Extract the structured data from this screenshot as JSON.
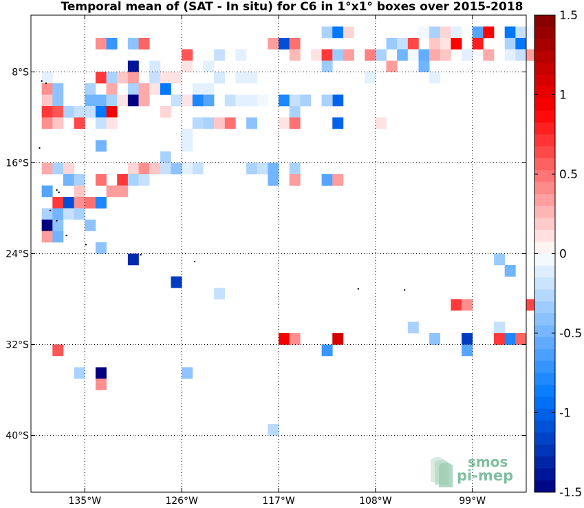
{
  "chart_data": {
    "type": "heatmap",
    "title": "Temporal mean of (SAT - In situ) for C6 in 1°x1° boxes over 2015-2018",
    "lon_range": [
      -140,
      -94
    ],
    "lat_range": [
      -45,
      -3
    ],
    "x_ticks": [
      {
        "value": -135,
        "label": "135°W"
      },
      {
        "value": -126,
        "label": "126°W"
      },
      {
        "value": -117,
        "label": "117°W"
      },
      {
        "value": -108,
        "label": "108°W"
      },
      {
        "value": -99,
        "label": "99°W"
      }
    ],
    "y_ticks": [
      {
        "value": -8,
        "label": "8°S"
      },
      {
        "value": -16,
        "label": "16°S"
      },
      {
        "value": -24,
        "label": "24°S"
      },
      {
        "value": -32,
        "label": "32°S"
      },
      {
        "value": -40,
        "label": "40°S"
      }
    ],
    "grid": true,
    "colorbar": {
      "min": -1.5,
      "max": 1.5,
      "steps": 40,
      "ticks": [
        {
          "value": 1.5,
          "label": "1.5"
        },
        {
          "value": 1,
          "label": "1"
        },
        {
          "value": 0.5,
          "label": "0.5"
        },
        {
          "value": 0,
          "label": "0"
        },
        {
          "value": -0.5,
          "label": "-0.5"
        },
        {
          "value": -1,
          "label": "-1"
        },
        {
          "value": -1.5,
          "label": "-1.5"
        }
      ]
    },
    "cells": [
      [
        -113,
        -5,
        -0.3
      ],
      [
        -112,
        -5,
        -0.9
      ],
      [
        -111,
        -5,
        0.15
      ],
      [
        -104,
        -5,
        -0.05
      ],
      [
        -103,
        -5,
        -0.3
      ],
      [
        -102,
        -5,
        0.15
      ],
      [
        -101,
        -5,
        -0.1
      ],
      [
        -99,
        -5,
        -0.6
      ],
      [
        -98,
        -5,
        0.9
      ],
      [
        -96,
        -5,
        -0.9
      ],
      [
        -95,
        -5,
        -0.2
      ],
      [
        -94,
        -5,
        -0.05
      ],
      [
        -134,
        -6,
        0.4
      ],
      [
        -133,
        -6,
        -0.7
      ],
      [
        -131,
        -6,
        -0.4
      ],
      [
        -130,
        -6,
        0.55
      ],
      [
        -118,
        -6,
        0.35
      ],
      [
        -117,
        -6,
        -1.1
      ],
      [
        -116,
        -6,
        0.5
      ],
      [
        -107,
        -6,
        -0.35
      ],
      [
        -106,
        -6,
        -0.2
      ],
      [
        -105,
        -6,
        0.65
      ],
      [
        -103,
        -6,
        0.2
      ],
      [
        -102,
        -6,
        0.1
      ],
      [
        -101,
        -6,
        0.9
      ],
      [
        -99,
        -6,
        0.8
      ],
      [
        -96,
        -6,
        -0.3
      ],
      [
        -95,
        -6,
        -0.9
      ],
      [
        -126,
        -7,
        0.6
      ],
      [
        -123,
        -7,
        -0.2
      ],
      [
        -121,
        -7,
        -0.1
      ],
      [
        -116,
        -7,
        0.25
      ],
      [
        -114,
        -7,
        0.1
      ],
      [
        -113,
        -7,
        0.7
      ],
      [
        -112,
        -7,
        -0.35
      ],
      [
        -111,
        -7,
        0.35
      ],
      [
        -109,
        -7,
        0.45
      ],
      [
        -108,
        -7,
        -0.3
      ],
      [
        -106,
        -7,
        -0.5
      ],
      [
        -105,
        -7,
        -0.05
      ],
      [
        -104,
        -7,
        -0.55
      ],
      [
        -103,
        -7,
        0.3
      ],
      [
        -102,
        -7,
        0.2
      ],
      [
        -100,
        -7,
        -0.1
      ],
      [
        -98,
        -7,
        0.3
      ],
      [
        -96,
        -7,
        -0.1
      ],
      [
        -95,
        -7,
        -0.2
      ],
      [
        -94,
        -7,
        0.35
      ],
      [
        -131,
        -8,
        -1.4
      ],
      [
        -129,
        -8,
        -0.15
      ],
      [
        -126,
        -8,
        0.1
      ],
      [
        -124,
        -8,
        -0.1
      ],
      [
        -113,
        -8,
        -0.35
      ],
      [
        -107,
        -8,
        0.35
      ],
      [
        -104,
        -8,
        -0.5
      ],
      [
        -139,
        -9,
        -0.1
      ],
      [
        -134,
        -9,
        0.7
      ],
      [
        -133,
        -9,
        -0.3
      ],
      [
        -132,
        -9,
        0.2
      ],
      [
        -131,
        -9,
        0.35
      ],
      [
        -129,
        -9,
        -0.2
      ],
      [
        -128,
        -9,
        0.1
      ],
      [
        -127,
        -9,
        0.1
      ],
      [
        -123,
        -9,
        -0.15
      ],
      [
        -121,
        -9,
        -0.1
      ],
      [
        -120,
        -9,
        -0.1
      ],
      [
        -109,
        -9,
        -0.1
      ],
      [
        -103,
        -9,
        -0.1
      ],
      [
        -139,
        -10,
        0.4
      ],
      [
        -138,
        -10,
        -0.4
      ],
      [
        -135,
        -10,
        -0.3
      ],
      [
        -133,
        -10,
        0.3
      ],
      [
        -131,
        -10,
        -0.3
      ],
      [
        -130,
        -10,
        0.3
      ],
      [
        -129,
        -10,
        0.1
      ],
      [
        -128,
        -10,
        -0.9
      ],
      [
        -125,
        -10,
        -0.1
      ],
      [
        -124,
        -10,
        -0.1
      ],
      [
        -139,
        -11,
        0.2
      ],
      [
        -138,
        -11,
        -0.4
      ],
      [
        -135,
        -11,
        -0.5
      ],
      [
        -134,
        -11,
        -0.5
      ],
      [
        -133,
        -11,
        -0.3
      ],
      [
        -132,
        -11,
        0.1
      ],
      [
        -131,
        -11,
        -1.5
      ],
      [
        -130,
        -11,
        0.3
      ],
      [
        -127,
        -11,
        -0.2
      ],
      [
        -126,
        -11,
        0.1
      ],
      [
        -125,
        -11,
        -0.8
      ],
      [
        -124,
        -11,
        -0.6
      ],
      [
        -122,
        -11,
        -0.2
      ],
      [
        -121,
        -11,
        -0.1
      ],
      [
        -120,
        -11,
        -0.1
      ],
      [
        -119,
        -11,
        -0.05
      ],
      [
        -117,
        -11,
        -0.8
      ],
      [
        -116,
        -11,
        -0.2
      ],
      [
        -115,
        -11,
        -0.3
      ],
      [
        -113,
        -11,
        -0.3
      ],
      [
        -112,
        -11,
        -1.0
      ],
      [
        -113,
        -11,
        -0.3
      ],
      [
        -139,
        -12,
        0.7
      ],
      [
        -138,
        -12,
        0.6
      ],
      [
        -137,
        -12,
        -0.3
      ],
      [
        -136,
        -12,
        -0.2
      ],
      [
        -135,
        -12,
        -0.2
      ],
      [
        -134,
        -12,
        -0.9
      ],
      [
        -133,
        -12,
        0.95
      ],
      [
        -128,
        -12,
        0.15
      ],
      [
        -116,
        -12,
        -0.3
      ],
      [
        -139,
        -13,
        0.4
      ],
      [
        -138,
        -13,
        0.2
      ],
      [
        -136,
        -13,
        0.65
      ],
      [
        -134,
        -13,
        -0.2
      ],
      [
        -133,
        -13,
        0.1
      ],
      [
        -125,
        -13,
        -0.25
      ],
      [
        -124,
        -13,
        -0.3
      ],
      [
        -123,
        -13,
        0.2
      ],
      [
        -122,
        -13,
        0.5
      ],
      [
        -120,
        -13,
        -0.4
      ],
      [
        -117,
        -13,
        0.1
      ],
      [
        -112,
        -13,
        -1.0
      ],
      [
        -108,
        -13,
        0.1
      ],
      [
        -116,
        -13,
        0.5
      ],
      [
        -126,
        -14,
        -0.1
      ],
      [
        -126,
        -15,
        -0.1
      ],
      [
        -134,
        -15,
        -0.5
      ],
      [
        -128,
        -16,
        -0.3
      ],
      [
        -128,
        -17,
        -0.2
      ],
      [
        -126,
        -17,
        -0.1
      ],
      [
        -125,
        -17,
        -0.2
      ],
      [
        -139,
        -17,
        0.3
      ],
      [
        -138,
        -17,
        -0.3
      ],
      [
        -137,
        -17,
        0.15
      ],
      [
        -131,
        -17,
        0.15
      ],
      [
        -130,
        -17,
        0.4
      ],
      [
        -129,
        -17,
        0.2
      ],
      [
        -127,
        -17,
        -0.4
      ],
      [
        -120,
        -17,
        -0.3
      ],
      [
        -119,
        -17,
        -0.2
      ],
      [
        -118,
        -17,
        -0.5
      ],
      [
        -116,
        -17,
        -0.3
      ],
      [
        -137,
        -18,
        -0.5
      ],
      [
        -136,
        -18,
        -0.3
      ],
      [
        -134,
        -18,
        0.5
      ],
      [
        -132,
        -18,
        0.7
      ],
      [
        -131,
        -18,
        -0.3
      ],
      [
        -130,
        -18,
        -0.2
      ],
      [
        -118,
        -18,
        -0.5
      ],
      [
        -116,
        -18,
        0.35
      ],
      [
        -113,
        -18,
        -0.6
      ],
      [
        -112,
        -18,
        0.35
      ],
      [
        -139,
        -19,
        -0.6
      ],
      [
        -136,
        -19,
        0.2
      ],
      [
        -133,
        -19,
        0.35
      ],
      [
        -132,
        -19,
        0.35
      ],
      [
        -138,
        -20,
        0.7
      ],
      [
        -137,
        -20,
        -1.1
      ],
      [
        -136,
        -20,
        0.4
      ],
      [
        -135,
        -20,
        0.5
      ],
      [
        -134,
        -20,
        -0.8
      ],
      [
        -139,
        -21,
        -0.3
      ],
      [
        -138,
        -21,
        -0.5
      ],
      [
        -137,
        -21,
        -0.2
      ],
      [
        -136,
        -21,
        -0.3
      ],
      [
        -139,
        -22,
        -1.5
      ],
      [
        -138,
        -22,
        -0.4
      ],
      [
        -135,
        -22,
        -0.4
      ],
      [
        -139,
        -23,
        0.35
      ],
      [
        -138,
        -23,
        -0.5
      ],
      [
        -134,
        -24,
        -0.4
      ],
      [
        -131,
        -25,
        -1.3
      ],
      [
        -97,
        -25,
        -0.35
      ],
      [
        -96,
        -26,
        -0.5
      ],
      [
        -127,
        -27,
        -1.2
      ],
      [
        -123,
        -28,
        -0.2
      ],
      [
        -101,
        -29,
        0.7
      ],
      [
        -100,
        -29,
        0.4
      ],
      [
        -94,
        -29,
        0.65
      ],
      [
        -105,
        -31,
        -0.3
      ],
      [
        -97,
        -31,
        -0.2
      ],
      [
        -117,
        -32,
        0.95
      ],
      [
        -116,
        -32,
        0.4
      ],
      [
        -112,
        -32,
        1.1
      ],
      [
        -103,
        -32,
        -0.4
      ],
      [
        -100,
        -32,
        -1.2
      ],
      [
        -97,
        -32,
        0.7
      ],
      [
        -96,
        -32,
        -0.8
      ],
      [
        -95,
        -32,
        0.55
      ],
      [
        -93,
        -32,
        0.4
      ],
      [
        -138,
        -33,
        0.6
      ],
      [
        -113,
        -33,
        -0.7
      ],
      [
        -100,
        -33,
        -0.6
      ],
      [
        -136,
        -35,
        -0.3
      ],
      [
        -134,
        -35,
        -1.5
      ],
      [
        -126,
        -35,
        -0.4
      ],
      [
        -134,
        -36,
        0.4
      ],
      [
        -118,
        -40,
        -0.25
      ]
    ]
  },
  "logo": {
    "line1": "smos",
    "line2": "pi-mep"
  }
}
